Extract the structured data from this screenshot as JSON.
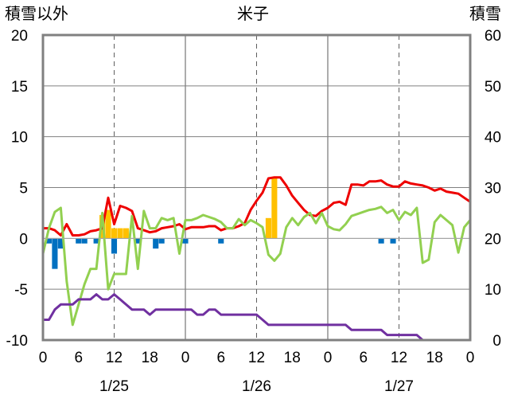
{
  "chart_data": {
    "type": "line",
    "title": "米子",
    "ylabel_left": "積雪以外",
    "ylabel_right": "積雪",
    "ylim_left": [
      -10,
      20
    ],
    "ylim_right": [
      0,
      60
    ],
    "yticks_left": [
      "20",
      "15",
      "10",
      "5",
      "0",
      "-5",
      "-10"
    ],
    "yticks_right": [
      "60",
      "50",
      "40",
      "30",
      "20",
      "10",
      "0"
    ],
    "xlim_hours": [
      0,
      72
    ],
    "xticks": [
      "0",
      "6",
      "12",
      "18",
      "0",
      "6",
      "12",
      "18",
      "0",
      "6",
      "12",
      "18",
      "0"
    ],
    "date_labels": [
      "1/25",
      "1/26",
      "1/27"
    ],
    "grid": true,
    "colors": {
      "red_line": "#ee0000",
      "green_line": "#92d050",
      "purple_line": "#7030a0",
      "orange_bars": "#ffc000",
      "blue_bars": "#0070c0",
      "axis": "#808080"
    },
    "series": [
      {
        "axis": "left",
        "style": "line",
        "color": "#ee0000",
        "points": [
          [
            0,
            1.0
          ],
          [
            1,
            1.0
          ],
          [
            2,
            0.8
          ],
          [
            3,
            0.3
          ],
          [
            4,
            1.4
          ],
          [
            5,
            0.3
          ],
          [
            6,
            0.3
          ],
          [
            7,
            0.4
          ],
          [
            8,
            0.7
          ],
          [
            9,
            0.8
          ],
          [
            10,
            1.0
          ],
          [
            11,
            4.0
          ],
          [
            12,
            1.4
          ],
          [
            13,
            3.2
          ],
          [
            14,
            3.0
          ],
          [
            15,
            2.7
          ],
          [
            16,
            1.0
          ],
          [
            17,
            0.8
          ],
          [
            18,
            0.6
          ],
          [
            19,
            0.7
          ],
          [
            20,
            1.0
          ],
          [
            21,
            1.1
          ],
          [
            22,
            1.2
          ],
          [
            23,
            1.4
          ],
          [
            24,
            0.9
          ],
          [
            25,
            1.1
          ],
          [
            26,
            1.1
          ],
          [
            27,
            1.1
          ],
          [
            28,
            1.2
          ],
          [
            29,
            1.2
          ],
          [
            30,
            0.8
          ],
          [
            31,
            1.0
          ],
          [
            32,
            1.0
          ],
          [
            33,
            1.2
          ],
          [
            34,
            1.5
          ],
          [
            35,
            2.8
          ],
          [
            36,
            3.7
          ],
          [
            37,
            4.5
          ],
          [
            38,
            5.9
          ],
          [
            39,
            6.0
          ],
          [
            40,
            6.0
          ],
          [
            41,
            5.2
          ],
          [
            42,
            4.2
          ],
          [
            43,
            3.5
          ],
          [
            44,
            2.8
          ],
          [
            45,
            2.3
          ],
          [
            46,
            2.2
          ],
          [
            47,
            2.7
          ],
          [
            48,
            3.0
          ],
          [
            49,
            3.5
          ],
          [
            50,
            3.6
          ],
          [
            51,
            3.3
          ],
          [
            52,
            5.3
          ],
          [
            53,
            5.3
          ],
          [
            54,
            5.2
          ],
          [
            55,
            5.6
          ],
          [
            56,
            5.6
          ],
          [
            57,
            5.7
          ],
          [
            58,
            5.3
          ],
          [
            59,
            5.1
          ],
          [
            60,
            5.1
          ],
          [
            61,
            5.6
          ],
          [
            62,
            5.4
          ],
          [
            63,
            5.3
          ],
          [
            64,
            5.2
          ],
          [
            65,
            5.0
          ],
          [
            66,
            4.7
          ],
          [
            67,
            4.9
          ],
          [
            68,
            4.6
          ],
          [
            69,
            4.5
          ],
          [
            70,
            4.4
          ],
          [
            71,
            4.0
          ],
          [
            72,
            3.6
          ]
        ]
      },
      {
        "axis": "left",
        "style": "line",
        "color": "#92d050",
        "points": [
          [
            0,
            -1.5
          ],
          [
            1,
            1.0
          ],
          [
            2,
            2.6
          ],
          [
            3,
            3.0
          ],
          [
            4,
            -4.2
          ],
          [
            5,
            -8.5
          ],
          [
            6,
            -6.5
          ],
          [
            7,
            -4.5
          ],
          [
            8,
            -3.0
          ],
          [
            9,
            -3.0
          ],
          [
            10,
            2.5
          ],
          [
            11,
            -5.0
          ],
          [
            12,
            -3.5
          ],
          [
            13,
            -3.5
          ],
          [
            14,
            -3.5
          ],
          [
            15,
            2.2
          ],
          [
            16,
            -3.0
          ],
          [
            17,
            2.7
          ],
          [
            18,
            1.0
          ],
          [
            19,
            1.0
          ],
          [
            20,
            2.0
          ],
          [
            21,
            1.8
          ],
          [
            22,
            2.0
          ],
          [
            23,
            -1.5
          ],
          [
            24,
            1.8
          ],
          [
            25,
            1.8
          ],
          [
            26,
            2.0
          ],
          [
            27,
            2.3
          ],
          [
            28,
            2.1
          ],
          [
            29,
            1.9
          ],
          [
            30,
            1.6
          ],
          [
            31,
            1.0
          ],
          [
            32,
            1.0
          ],
          [
            33,
            1.9
          ],
          [
            34,
            1.3
          ],
          [
            35,
            1.8
          ],
          [
            36,
            1.5
          ],
          [
            37,
            1.1
          ],
          [
            38,
            -1.6
          ],
          [
            39,
            -2.2
          ],
          [
            40,
            -1.5
          ],
          [
            41,
            1.1
          ],
          [
            42,
            2.0
          ],
          [
            43,
            1.3
          ],
          [
            44,
            2.1
          ],
          [
            45,
            2.5
          ],
          [
            46,
            1.5
          ],
          [
            47,
            2.5
          ],
          [
            48,
            1.2
          ],
          [
            49,
            0.9
          ],
          [
            50,
            0.8
          ],
          [
            51,
            1.4
          ],
          [
            52,
            2.2
          ],
          [
            53,
            2.4
          ],
          [
            54,
            2.6
          ],
          [
            55,
            2.8
          ],
          [
            56,
            2.9
          ],
          [
            57,
            3.1
          ],
          [
            58,
            2.5
          ],
          [
            59,
            2.8
          ],
          [
            60,
            1.8
          ],
          [
            61,
            2.6
          ],
          [
            62,
            2.3
          ],
          [
            63,
            3.0
          ],
          [
            64,
            -2.4
          ],
          [
            65,
            -2.1
          ],
          [
            66,
            1.6
          ],
          [
            67,
            2.3
          ],
          [
            68,
            1.8
          ],
          [
            69,
            1.3
          ],
          [
            70,
            -1.4
          ],
          [
            71,
            1.1
          ],
          [
            72,
            1.8
          ]
        ]
      },
      {
        "axis": "right",
        "style": "line",
        "color": "#7030a0",
        "points": [
          [
            0,
            4
          ],
          [
            1,
            4
          ],
          [
            2,
            6
          ],
          [
            3,
            7
          ],
          [
            5,
            7
          ],
          [
            6,
            8
          ],
          [
            8,
            8
          ],
          [
            9,
            9
          ],
          [
            10,
            8
          ],
          [
            11,
            8
          ],
          [
            12,
            9
          ],
          [
            13,
            8
          ],
          [
            14,
            7
          ],
          [
            15,
            6
          ],
          [
            17,
            6
          ],
          [
            18,
            5
          ],
          [
            19,
            6
          ],
          [
            25,
            6
          ],
          [
            26,
            5
          ],
          [
            27,
            5
          ],
          [
            28,
            6
          ],
          [
            29,
            6
          ],
          [
            30,
            5
          ],
          [
            36,
            5
          ],
          [
            37,
            4
          ],
          [
            38,
            3
          ],
          [
            51,
            3
          ],
          [
            52,
            2
          ],
          [
            57,
            2
          ],
          [
            58,
            1
          ],
          [
            63,
            1
          ],
          [
            64,
            0
          ],
          [
            72,
            0
          ]
        ]
      },
      {
        "axis": "left",
        "style": "bar",
        "color": "#ffc000",
        "points": [
          [
            10,
            2.3
          ],
          [
            11,
            2.8
          ],
          [
            12,
            1.0
          ],
          [
            13,
            1.0
          ],
          [
            14,
            1.0
          ],
          [
            38,
            2.0
          ],
          [
            39,
            6.0
          ]
        ]
      },
      {
        "axis": "left",
        "style": "bar",
        "color": "#0070c0",
        "points": [
          [
            1,
            -0.5
          ],
          [
            2,
            -3.0
          ],
          [
            3,
            -1.0
          ],
          [
            6,
            -0.5
          ],
          [
            7,
            -0.5
          ],
          [
            9,
            -0.5
          ],
          [
            12,
            -1.5
          ],
          [
            16,
            -0.5
          ],
          [
            19,
            -1.0
          ],
          [
            20,
            -0.5
          ],
          [
            24,
            -0.5
          ],
          [
            30,
            -0.5
          ],
          [
            57,
            -0.5
          ],
          [
            59,
            -0.5
          ]
        ]
      }
    ]
  }
}
